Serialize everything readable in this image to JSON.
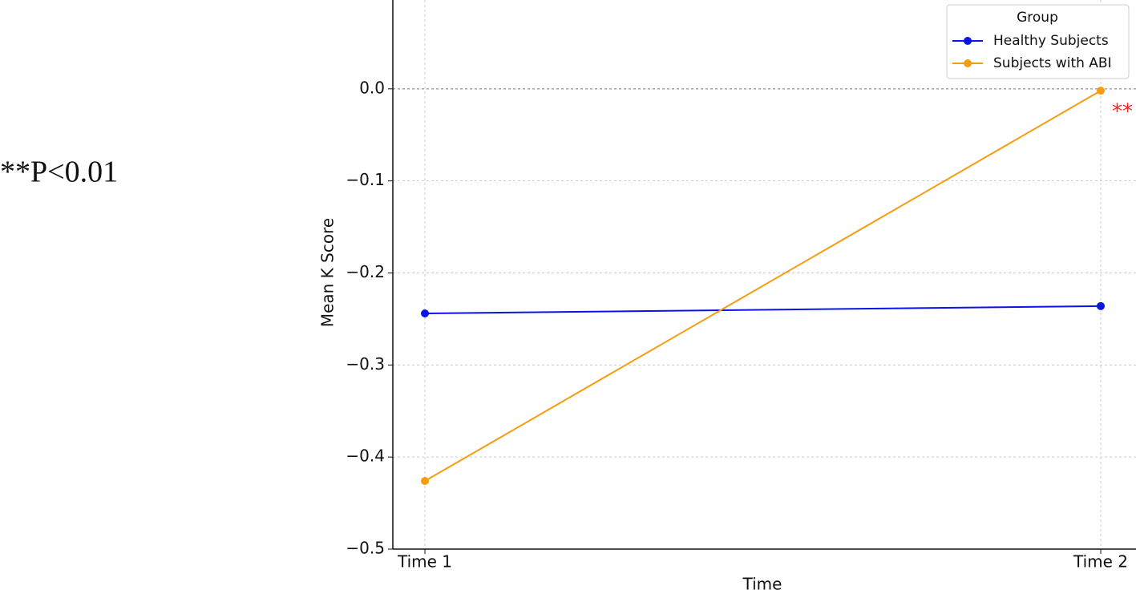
{
  "chart_data": {
    "type": "line",
    "xlabel": "Time",
    "ylabel": "Mean K Score",
    "categories": [
      "Time 1",
      "Time 2"
    ],
    "series": [
      {
        "name": "Healthy Subjects",
        "color": "#0a14e6",
        "values": [
          -0.244,
          -0.236
        ]
      },
      {
        "name": "Subjects with ABI",
        "color": "#f59d0f",
        "values": [
          -0.426,
          -0.002
        ]
      }
    ],
    "ylim": [
      -0.5,
      0.1
    ],
    "yticks": [
      {
        "value": -0.5,
        "label": "−0.5"
      },
      {
        "value": -0.4,
        "label": "−0.4"
      },
      {
        "value": -0.3,
        "label": "−0.3"
      },
      {
        "value": -0.2,
        "label": "−0.2"
      },
      {
        "value": -0.1,
        "label": "−0.1"
      },
      {
        "value": 0,
        "label": "0.0"
      }
    ],
    "grid": true,
    "legend_title": "Group",
    "legend": "upper right",
    "annotation": "**",
    "annotation_color": "#ff2020",
    "note": "**P<0.01"
  }
}
